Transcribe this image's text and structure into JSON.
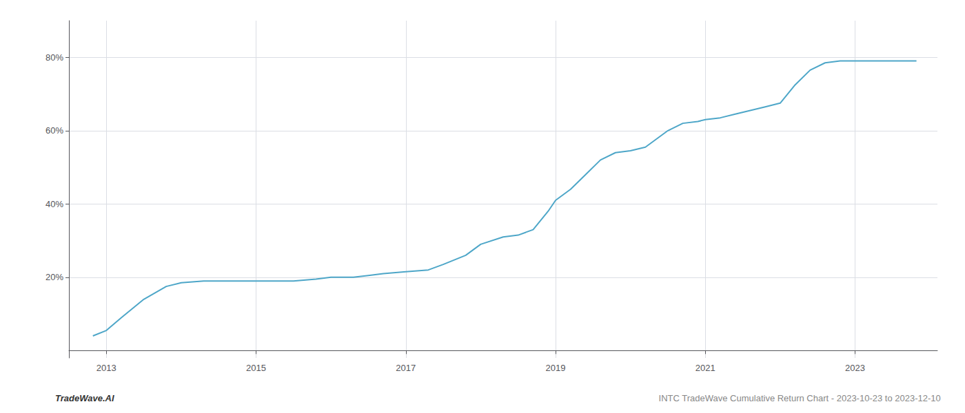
{
  "chart_data": {
    "type": "line",
    "title": "INTC TradeWave Cumulative Return Chart - 2023-10-23 to 2023-12-10",
    "annotations": [
      "TradeWave.AI"
    ],
    "color": "#4da6c8",
    "x": [
      2012.82,
      2013.0,
      2013.2,
      2013.5,
      2013.8,
      2014.0,
      2014.3,
      2014.5,
      2014.7,
      2015.0,
      2015.3,
      2015.5,
      2015.8,
      2016.0,
      2016.3,
      2016.5,
      2016.7,
      2017.0,
      2017.3,
      2017.5,
      2017.8,
      2018.0,
      2018.3,
      2018.5,
      2018.7,
      2018.9,
      2019.0,
      2019.2,
      2019.4,
      2019.6,
      2019.8,
      2020.0,
      2020.2,
      2020.5,
      2020.7,
      2020.9,
      2021.0,
      2021.2,
      2021.4,
      2021.6,
      2021.8,
      2022.0,
      2022.2,
      2022.4,
      2022.6,
      2022.8,
      2023.0,
      2023.2,
      2023.5,
      2023.82
    ],
    "values": [
      0.04,
      0.055,
      0.09,
      0.14,
      0.175,
      0.185,
      0.19,
      0.19,
      0.19,
      0.19,
      0.19,
      0.19,
      0.195,
      0.2,
      0.2,
      0.205,
      0.21,
      0.215,
      0.22,
      0.235,
      0.26,
      0.29,
      0.31,
      0.315,
      0.33,
      0.38,
      0.41,
      0.44,
      0.48,
      0.52,
      0.54,
      0.545,
      0.555,
      0.6,
      0.62,
      0.625,
      0.63,
      0.635,
      0.645,
      0.655,
      0.665,
      0.675,
      0.725,
      0.765,
      0.785,
      0.79,
      0.79,
      0.79,
      0.79,
      0.79
    ],
    "xlim": [
      2012.5,
      2024.1
    ],
    "xticks": [
      2013,
      2015,
      2017,
      2019,
      2021,
      2023
    ],
    "ylim": [
      -0.02,
      0.9
    ],
    "yticks": [
      {
        "value": 0.2,
        "label": "20%"
      },
      {
        "value": 0.4,
        "label": "40%"
      },
      {
        "value": 0.6,
        "label": "60%"
      },
      {
        "value": 0.8,
        "label": "80%"
      }
    ],
    "grid": true
  }
}
